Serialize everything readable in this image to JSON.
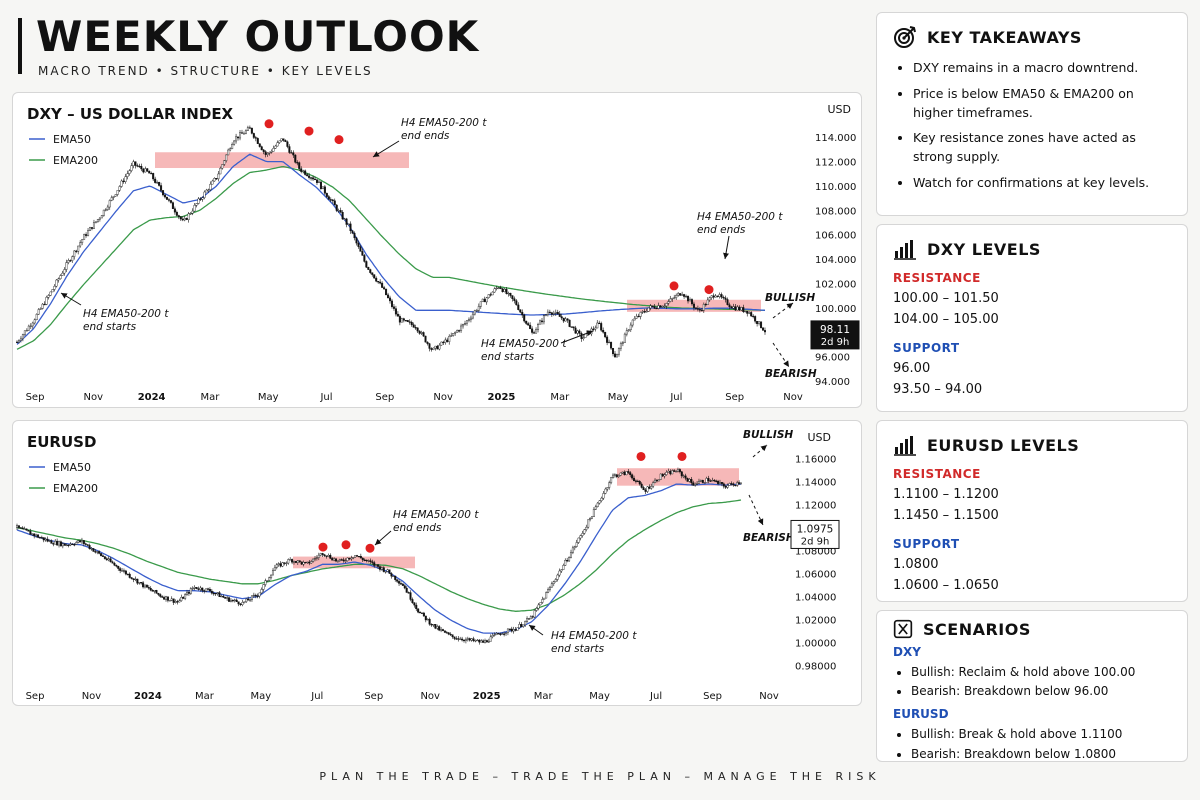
{
  "header": {
    "title": "WEEKLY OUTLOOK",
    "subtitle": "MACRO TREND • STRUCTURE • KEY LEVELS"
  },
  "footer": {
    "text": "PLAN THE TRADE – TRADE THE PLAN – MANAGE THE RISK"
  },
  "colors": {
    "ema50": "#3a5fcd",
    "ema200": "#3a9a4a",
    "zone": "#f4a6a6",
    "marker": "#e02020",
    "resistance": "#d12a2a",
    "support": "#1f4fb4"
  },
  "takeaways": {
    "title": "KEY TAKEAWAYS",
    "icon": "target-icon",
    "items": [
      "DXY remains in a macro downtrend.",
      "Price is below EMA50 & EMA200 on higher timeframes.",
      "Key resistance zones have acted as strong supply.",
      "Watch for confirmations at key levels."
    ]
  },
  "dxy_levels": {
    "title": "DXY LEVELS",
    "icon": "bar-chart-icon",
    "resistance_label": "RESISTANCE",
    "resistance": [
      "100.00 – 101.50",
      "104.00 – 105.00"
    ],
    "support_label": "SUPPORT",
    "support": [
      "96.00",
      "93.50 – 94.00"
    ]
  },
  "eurusd_levels": {
    "title": "EURUSD LEVELS",
    "icon": "bar-chart-icon",
    "resistance_label": "RESISTANCE",
    "resistance": [
      "1.1100 – 1.1200",
      "1.1450 – 1.1500"
    ],
    "support_label": "SUPPORT",
    "support": [
      "1.0800",
      "1.0600 – 1.0650"
    ]
  },
  "scenarios": {
    "title": "SCENARIOS",
    "icon": "scenario-icon",
    "groups": [
      {
        "name": "DXY",
        "items": [
          "Bullish: Reclaim & hold above 100.00",
          "Bearish: Breakdown below 96.00"
        ]
      },
      {
        "name": "EURUSD",
        "items": [
          "Bullish: Break & hold above 1.1100",
          "Bearish: Breakdown below 1.0800"
        ]
      }
    ]
  },
  "chart_data": [
    {
      "type": "line",
      "title": "DXY – US DOLLAR INDEX",
      "unit_label": "USD",
      "legend": [
        "EMA50",
        "EMA200"
      ],
      "xticks": [
        "Sep",
        "Nov",
        "2024",
        "Mar",
        "May",
        "Jul",
        "Sep",
        "Nov",
        "2025",
        "Mar",
        "May",
        "Jul",
        "Sep",
        "Nov"
      ],
      "yticks": [
        "114.000",
        "112.000",
        "110.000",
        "108.000",
        "106.000",
        "104.000",
        "102.000",
        "100.000",
        "98.000",
        "96.000",
        "94.000"
      ],
      "ylim": [
        94,
        115
      ],
      "x": [
        0,
        1,
        2,
        3,
        4,
        5,
        6,
        7,
        8,
        9,
        10,
        11,
        12,
        13,
        14,
        15,
        16,
        17,
        18,
        19,
        20,
        21,
        22,
        23,
        24,
        25
      ],
      "series": [
        {
          "name": "Price",
          "values": [
            97.2,
            99.0,
            101.2,
            103.6,
            105.8,
            107.5,
            109.6,
            111.8,
            111.0,
            109.0,
            107.0,
            108.9,
            110.7,
            113.8,
            114.7,
            112.5,
            113.9,
            111.4,
            110.5,
            108.6,
            106.6,
            103.5,
            101.6,
            99.0,
            98.5,
            96.5
          ]
        },
        {
          "name": "EMA50",
          "values": [
            97.0,
            98.3,
            100.3,
            102.6,
            104.6,
            106.3,
            108.0,
            109.6,
            110.0,
            109.3,
            108.6,
            108.9,
            110.0,
            111.6,
            112.6,
            112.0,
            112.0,
            110.9,
            109.9,
            108.5,
            106.7,
            104.4,
            102.5,
            100.9,
            99.8,
            99.8
          ]
        },
        {
          "name": "EMA200",
          "values": [
            96.6,
            97.3,
            98.6,
            100.3,
            101.9,
            103.4,
            104.9,
            106.4,
            107.2,
            107.4,
            107.5,
            108.0,
            109.0,
            110.2,
            111.1,
            111.3,
            111.6,
            111.3,
            110.7,
            109.9,
            108.8,
            107.3,
            105.8,
            104.4,
            103.2,
            102.5
          ]
        }
      ],
      "late_series": [
        {
          "name": "Price",
          "values": [
            97.5,
            98.8,
            100.5,
            101.8,
            100.4,
            97.9,
            99.8,
            99.0,
            97.5,
            98.7,
            96.0,
            98.9,
            100.0,
            100.3,
            101.3,
            99.7,
            101.2,
            100.1,
            99.7,
            98.11
          ]
        }
      ],
      "resistance_zones": [
        [
          111.8,
          112.6
        ],
        [
          100.0,
          100.5
        ]
      ],
      "markers": [
        115.1,
        114.5,
        113.8,
        101.8,
        101.5
      ],
      "last_price": "98.11",
      "countdown": "2d 9h",
      "annotations": [
        "H4 EMA50-200 trend ends",
        "H4 EMA50-200 trend ends",
        "H4 EMA50-200 trend starts",
        "H4 EMA50-200 trend starts",
        "BULLISH",
        "BEARISH"
      ]
    },
    {
      "type": "line",
      "title": "EURUSD",
      "unit_label": "USD",
      "legend": [
        "EMA50",
        "EMA200"
      ],
      "xticks": [
        "Sep",
        "Nov",
        "2024",
        "Mar",
        "May",
        "Jul",
        "Sep",
        "Nov",
        "2025",
        "Mar",
        "May",
        "Jul",
        "Sep",
        "Nov"
      ],
      "yticks": [
        "1.16000",
        "1.14000",
        "1.12000",
        "1.10000",
        "1.08000",
        "1.06000",
        "1.04000",
        "1.02000",
        "1.00000",
        "0.98000"
      ],
      "ylim": [
        0.975,
        1.165
      ],
      "series": [
        {
          "name": "Price",
          "values": [
            1.1,
            1.094,
            1.088,
            1.085,
            1.088,
            1.078,
            1.068,
            1.058,
            1.048,
            1.04,
            1.035,
            1.048,
            1.045,
            1.038,
            1.034,
            1.042,
            1.065,
            1.072,
            1.068,
            1.078,
            1.07,
            1.076,
            1.069,
            1.062,
            1.05,
            1.026,
            1.013,
            1.005,
            1.002,
            1.0,
            1.008,
            1.012,
            1.022,
            1.045,
            1.068,
            1.092,
            1.118,
            1.145,
            1.148,
            1.132,
            1.145,
            1.15,
            1.138,
            1.142,
            1.136,
            1.14
          ]
        },
        {
          "name": "EMA50",
          "values": [
            1.098,
            1.093,
            1.089,
            1.086,
            1.085,
            1.08,
            1.073,
            1.065,
            1.057,
            1.05,
            1.045,
            1.045,
            1.044,
            1.041,
            1.038,
            1.04,
            1.05,
            1.058,
            1.062,
            1.068,
            1.068,
            1.07,
            1.067,
            1.062,
            1.053,
            1.04,
            1.028,
            1.019,
            1.012,
            1.008,
            1.008,
            1.011,
            1.018,
            1.032,
            1.05,
            1.07,
            1.093,
            1.115,
            1.126,
            1.128,
            1.132,
            1.138,
            1.137,
            1.138,
            1.137,
            1.138
          ]
        },
        {
          "name": "EMA200",
          "values": [
            1.1,
            1.097,
            1.094,
            1.091,
            1.089,
            1.086,
            1.082,
            1.077,
            1.071,
            1.066,
            1.061,
            1.058,
            1.055,
            1.053,
            1.051,
            1.051,
            1.054,
            1.058,
            1.061,
            1.064,
            1.066,
            1.068,
            1.068,
            1.067,
            1.064,
            1.058,
            1.051,
            1.044,
            1.038,
            1.033,
            1.029,
            1.027,
            1.028,
            1.033,
            1.041,
            1.051,
            1.063,
            1.077,
            1.089,
            1.098,
            1.106,
            1.113,
            1.118,
            1.121,
            1.122,
            1.124
          ]
        }
      ],
      "resistance_zones": [
        [
          1.068,
          1.073
        ],
        [
          1.14,
          1.15
        ]
      ],
      "markers": [
        1.083,
        1.085,
        1.082,
        1.162,
        1.162
      ],
      "last_price": "1.0975",
      "countdown": "2d 9h",
      "annotations": [
        "H4 EMA50-200 trend ends",
        "H4 EMA50-200 trend starts",
        "BULLISH",
        "BEARISH"
      ]
    }
  ]
}
